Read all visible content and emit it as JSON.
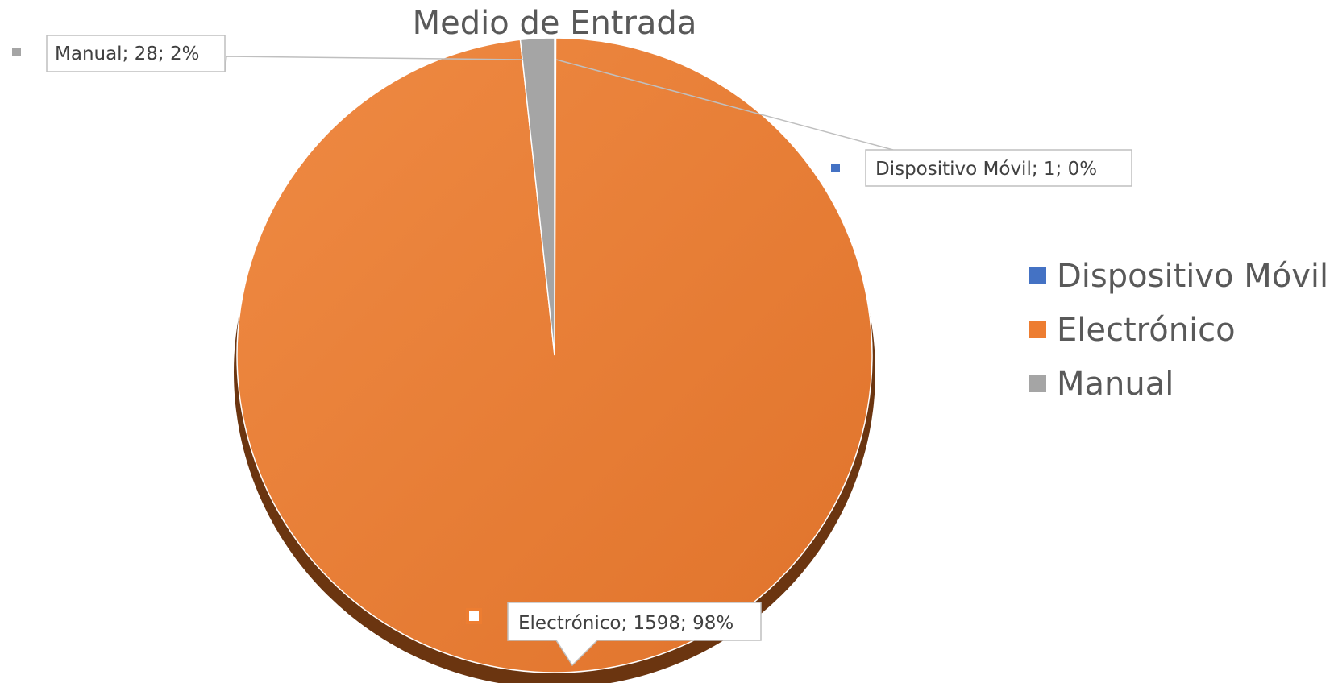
{
  "chart_data": {
    "type": "pie",
    "title": "Medio de Entrada",
    "slices": [
      {
        "label": "Dispositivo Móvil",
        "value": 1,
        "percent": "0%",
        "color": "#4472c4",
        "data_label": "Dispositivo Móvil; 1; 0%"
      },
      {
        "label": "Electrónico",
        "value": 1598,
        "percent": "98%",
        "color": "#ed7d31",
        "data_label": "Electrónico; 1598; 98%"
      },
      {
        "label": "Manual",
        "value": 28,
        "percent": "2%",
        "color": "#a5a5a5",
        "data_label": "Manual; 28; 2%"
      }
    ],
    "legend": {
      "position": "right",
      "entries": [
        "Dispositivo Móvil",
        "Electrónico",
        "Manual"
      ]
    }
  }
}
